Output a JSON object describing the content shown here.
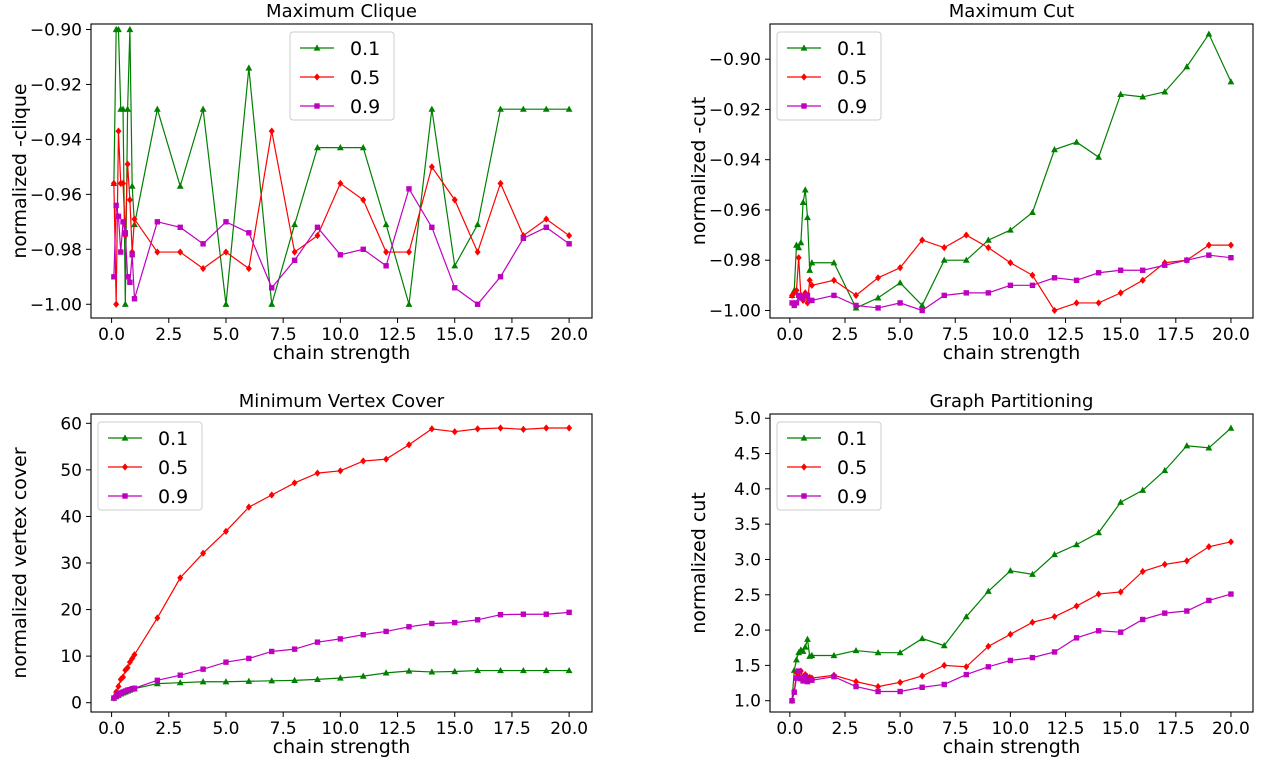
{
  "chart_data": [
    {
      "type": "line",
      "title": "Maximum Clique",
      "xlabel": "chain strength",
      "ylabel": "normalized -clique",
      "xlim": [
        -0.9,
        21.0
      ],
      "ylim": [
        -1.005,
        -0.898
      ],
      "xticks": [
        0,
        2.5,
        5,
        7.5,
        10,
        12.5,
        15,
        17.5,
        20
      ],
      "xtick_labels": [
        "0.0",
        "2.5",
        "5.0",
        "7.5",
        "10.0",
        "12.5",
        "15.0",
        "17.5",
        "20.0"
      ],
      "yticks": [
        -1.0,
        -0.98,
        -0.96,
        -0.94,
        -0.92,
        -0.9
      ],
      "ytick_labels": [
        "−1.00",
        "−0.98",
        "−0.96",
        "−0.94",
        "−0.92",
        "−0.90"
      ],
      "legend_position": "upper-center",
      "x": [
        0.1,
        0.2,
        0.3,
        0.4,
        0.5,
        0.6,
        0.7,
        0.8,
        0.9,
        1,
        2,
        3,
        4,
        5,
        6,
        7,
        8,
        9,
        10,
        11,
        12,
        13,
        14,
        15,
        16,
        17,
        18,
        19,
        20
      ],
      "series": [
        {
          "name": "0.1",
          "color": "#008000",
          "marker": "triangle",
          "values": [
            -0.956,
            -0.9,
            -0.9,
            -0.929,
            -0.929,
            -1.0,
            -0.929,
            -0.9,
            -0.957,
            -0.971,
            -0.929,
            -0.957,
            -0.929,
            -1.0,
            -0.914,
            -1.0,
            -0.971,
            -0.943,
            -0.943,
            -0.943,
            -0.971,
            -1.0,
            -0.929,
            -0.986,
            -0.971,
            -0.929,
            -0.929,
            -0.929,
            -0.929
          ]
        },
        {
          "name": "0.5",
          "color": "#ff0000",
          "marker": "diamond",
          "values": [
            -0.956,
            -1.0,
            -0.937,
            -0.956,
            -0.956,
            -0.975,
            -0.949,
            -0.962,
            -0.981,
            -0.969,
            -0.981,
            -0.981,
            -0.987,
            -0.981,
            -0.987,
            -0.937,
            -0.981,
            -0.975,
            -0.956,
            -0.962,
            -0.981,
            -0.981,
            -0.95,
            -0.962,
            -0.981,
            -0.956,
            -0.975,
            -0.969,
            -0.975
          ]
        },
        {
          "name": "0.9",
          "color": "#bf00bf",
          "marker": "square",
          "values": [
            -0.99,
            -0.964,
            -0.968,
            -0.981,
            -0.97,
            -0.974,
            -0.99,
            -0.992,
            -0.982,
            -0.998,
            -0.97,
            -0.972,
            -0.978,
            -0.97,
            -0.974,
            -0.994,
            -0.984,
            -0.972,
            -0.982,
            -0.98,
            -0.986,
            -0.958,
            -0.972,
            -0.994,
            -1.0,
            -0.99,
            -0.976,
            -0.972,
            -0.978
          ]
        }
      ]
    },
    {
      "type": "line",
      "title": "Maximum Cut",
      "xlabel": "chain strength",
      "ylabel": "normalized -cut",
      "xlim": [
        -0.9,
        21.0
      ],
      "ylim": [
        -1.003,
        -0.886
      ],
      "xticks": [
        0,
        2.5,
        5,
        7.5,
        10,
        12.5,
        15,
        17.5,
        20
      ],
      "xtick_labels": [
        "0.0",
        "2.5",
        "5.0",
        "7.5",
        "10.0",
        "12.5",
        "15.0",
        "17.5",
        "20.0"
      ],
      "yticks": [
        -1.0,
        -0.98,
        -0.96,
        -0.94,
        -0.92,
        -0.9
      ],
      "ytick_labels": [
        "−1.00",
        "−0.98",
        "−0.96",
        "−0.94",
        "−0.92",
        "−0.90"
      ],
      "legend_position": "upper-left",
      "x": [
        0.1,
        0.2,
        0.3,
        0.4,
        0.5,
        0.6,
        0.7,
        0.8,
        0.9,
        1,
        2,
        3,
        4,
        5,
        6,
        7,
        8,
        9,
        10,
        11,
        12,
        13,
        14,
        15,
        16,
        17,
        18,
        19,
        20
      ],
      "series": [
        {
          "name": "0.1",
          "color": "#008000",
          "marker": "triangle",
          "values": [
            -0.994,
            -0.992,
            -0.974,
            -0.975,
            -0.973,
            -0.957,
            -0.952,
            -0.963,
            -0.984,
            -0.981,
            -0.981,
            -0.999,
            -0.995,
            -0.989,
            -0.998,
            -0.98,
            -0.98,
            -0.972,
            -0.968,
            -0.961,
            -0.936,
            -0.933,
            -0.939,
            -0.914,
            -0.915,
            -0.913,
            -0.903,
            -0.89,
            -0.909
          ]
        },
        {
          "name": "0.5",
          "color": "#ff0000",
          "marker": "diamond",
          "values": [
            -0.994,
            -0.993,
            -0.992,
            -0.979,
            -0.994,
            -0.996,
            -0.993,
            -0.997,
            -0.988,
            -0.99,
            -0.988,
            -0.994,
            -0.987,
            -0.983,
            -0.972,
            -0.975,
            -0.97,
            -0.975,
            -0.981,
            -0.986,
            -1.0,
            -0.997,
            -0.997,
            -0.993,
            -0.988,
            -0.981,
            -0.98,
            -0.974,
            -0.974
          ]
        },
        {
          "name": "0.9",
          "color": "#bf00bf",
          "marker": "square",
          "values": [
            -0.997,
            -0.998,
            -0.997,
            -0.994,
            -0.995,
            -0.995,
            -0.994,
            -0.994,
            -0.996,
            -0.996,
            -0.994,
            -0.998,
            -0.999,
            -0.997,
            -1.0,
            -0.994,
            -0.993,
            -0.993,
            -0.99,
            -0.99,
            -0.987,
            -0.988,
            -0.985,
            -0.984,
            -0.984,
            -0.982,
            -0.98,
            -0.978,
            -0.979
          ]
        }
      ]
    },
    {
      "type": "line",
      "title": "Minimum Vertex Cover",
      "xlabel": "chain strength",
      "ylabel": "normalized vertex cover",
      "xlim": [
        -0.9,
        21.0
      ],
      "ylim": [
        -2.0,
        62.0
      ],
      "xticks": [
        0,
        2.5,
        5,
        7.5,
        10,
        12.5,
        15,
        17.5,
        20
      ],
      "xtick_labels": [
        "0.0",
        "2.5",
        "5.0",
        "7.5",
        "10.0",
        "12.5",
        "15.0",
        "17.5",
        "20.0"
      ],
      "yticks": [
        0,
        10,
        20,
        30,
        40,
        50,
        60
      ],
      "ytick_labels": [
        "0",
        "10",
        "20",
        "30",
        "40",
        "50",
        "60"
      ],
      "legend_position": "upper-left",
      "x": [
        0.1,
        0.2,
        0.3,
        0.4,
        0.5,
        0.6,
        0.7,
        0.8,
        0.9,
        1,
        2,
        3,
        4,
        5,
        6,
        7,
        8,
        9,
        10,
        11,
        12,
        13,
        14,
        15,
        16,
        17,
        18,
        19,
        20
      ],
      "series": [
        {
          "name": "0.1",
          "color": "#008000",
          "marker": "triangle",
          "values": [
            1.0,
            1.3,
            1.6,
            1.9,
            2.1,
            2.3,
            2.5,
            2.7,
            2.9,
            3.0,
            4.1,
            4.3,
            4.5,
            4.5,
            4.6,
            4.7,
            4.8,
            5.0,
            5.3,
            5.7,
            6.4,
            6.8,
            6.6,
            6.7,
            6.9,
            6.9,
            6.9,
            6.9,
            6.9
          ]
        },
        {
          "name": "0.5",
          "color": "#ff0000",
          "marker": "diamond",
          "values": [
            1.0,
            2.3,
            3.5,
            5.0,
            5.5,
            7.0,
            7.5,
            8.7,
            9.5,
            10.3,
            18.2,
            26.8,
            32.1,
            36.8,
            42.0,
            44.6,
            47.2,
            49.3,
            49.8,
            51.9,
            52.3,
            55.4,
            58.8,
            58.2,
            58.8,
            59.0,
            58.7,
            59.0,
            59.0
          ]
        },
        {
          "name": "0.9",
          "color": "#bf00bf",
          "marker": "square",
          "values": [
            1.0,
            1.4,
            1.8,
            2.1,
            2.3,
            2.5,
            2.7,
            2.8,
            3.0,
            3.1,
            4.8,
            5.9,
            7.2,
            8.7,
            9.5,
            11.0,
            11.5,
            13.0,
            13.7,
            14.6,
            15.3,
            16.3,
            17.0,
            17.2,
            17.8,
            18.9,
            19.0,
            19.0,
            19.4
          ]
        }
      ]
    },
    {
      "type": "line",
      "title": "Graph Partitioning",
      "xlabel": "chain strength",
      "ylabel": "normalized cut",
      "xlim": [
        -0.9,
        21.0
      ],
      "ylim": [
        0.84,
        5.06
      ],
      "xticks": [
        0,
        2.5,
        5,
        7.5,
        10,
        12.5,
        15,
        17.5,
        20
      ],
      "xtick_labels": [
        "0.0",
        "2.5",
        "5.0",
        "7.5",
        "10.0",
        "12.5",
        "15.0",
        "17.5",
        "20.0"
      ],
      "yticks": [
        1.0,
        1.5,
        2.0,
        2.5,
        3.0,
        3.5,
        4.0,
        4.5,
        5.0
      ],
      "ytick_labels": [
        "1.0",
        "1.5",
        "2.0",
        "2.5",
        "3.0",
        "3.5",
        "4.0",
        "4.5",
        "5.0"
      ],
      "legend_position": "upper-left",
      "x": [
        0.1,
        0.2,
        0.3,
        0.4,
        0.5,
        0.6,
        0.7,
        0.8,
        0.9,
        1,
        2,
        3,
        4,
        5,
        6,
        7,
        8,
        9,
        10,
        11,
        12,
        13,
        14,
        15,
        16,
        17,
        18,
        19,
        20
      ],
      "series": [
        {
          "name": "0.1",
          "color": "#008000",
          "marker": "triangle",
          "values": [
            1.0,
            1.43,
            1.58,
            1.68,
            1.72,
            1.7,
            1.76,
            1.87,
            1.63,
            1.64,
            1.64,
            1.71,
            1.68,
            1.68,
            1.88,
            1.78,
            2.19,
            2.55,
            2.84,
            2.79,
            3.07,
            3.21,
            3.38,
            3.81,
            3.98,
            4.26,
            4.61,
            4.58,
            4.86
          ]
        },
        {
          "name": "0.5",
          "color": "#ff0000",
          "marker": "diamond",
          "values": [
            1.0,
            1.13,
            1.4,
            1.35,
            1.42,
            1.3,
            1.37,
            1.33,
            1.33,
            1.32,
            1.36,
            1.27,
            1.2,
            1.26,
            1.35,
            1.5,
            1.48,
            1.77,
            1.94,
            2.11,
            2.19,
            2.34,
            2.51,
            2.54,
            2.83,
            2.93,
            2.98,
            3.18,
            3.25
          ]
        },
        {
          "name": "0.9",
          "color": "#bf00bf",
          "marker": "square",
          "values": [
            1.0,
            1.12,
            1.32,
            1.42,
            1.31,
            1.28,
            1.35,
            1.27,
            1.3,
            1.29,
            1.34,
            1.2,
            1.13,
            1.13,
            1.19,
            1.23,
            1.37,
            1.48,
            1.57,
            1.61,
            1.69,
            1.89,
            1.99,
            1.97,
            2.15,
            2.24,
            2.27,
            2.42,
            2.51
          ]
        }
      ]
    }
  ]
}
